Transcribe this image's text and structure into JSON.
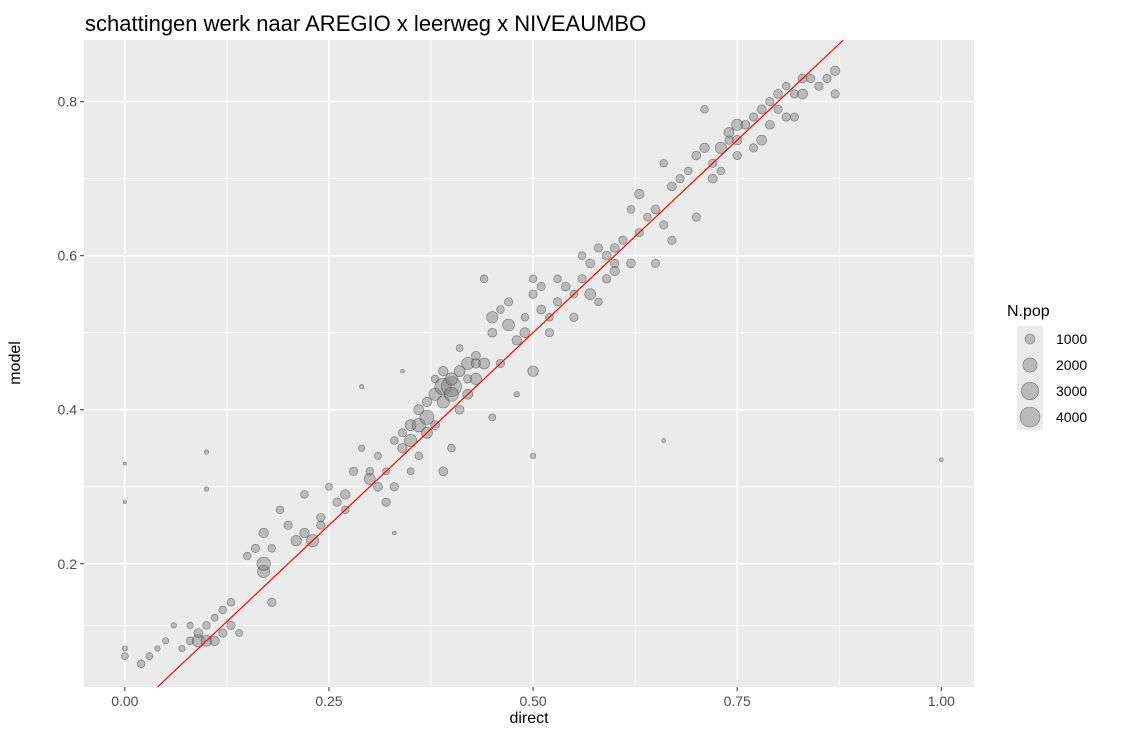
{
  "chart_data": {
    "type": "scatter",
    "title": "schattingen werk naar AREGIO x leerweg x NIVEAUMBO",
    "xlabel": "direct",
    "ylabel": "model",
    "xlim": [
      -0.05,
      1.04
    ],
    "ylim": [
      0.04,
      0.88
    ],
    "x_ticks": [
      0.0,
      0.25,
      0.5,
      0.75,
      1.0
    ],
    "x_tick_labels": [
      "0.00",
      "0.25",
      "0.50",
      "0.75",
      "1.00"
    ],
    "y_ticks": [
      0.2,
      0.4,
      0.6,
      0.8
    ],
    "y_tick_labels": [
      "0.2",
      "0.4",
      "0.6",
      "0.8"
    ],
    "grid": true,
    "reference_line": {
      "intercept": 0,
      "slope": 1,
      "color": "#ff0000"
    },
    "legend": {
      "title": "N.pop",
      "placement": "right",
      "entries": [
        {
          "label": "1000",
          "value": 1000
        },
        {
          "label": "2000",
          "value": 2000
        },
        {
          "label": "3000",
          "value": 3000
        },
        {
          "label": "4000",
          "value": 4000
        }
      ]
    },
    "colors": {
      "panel": "#ebebeb",
      "point_fill": "#7f7f7f",
      "point_stroke": "#333333"
    },
    "points": [
      [
        0.0,
        0.09,
        300
      ],
      [
        0.0,
        0.08,
        500
      ],
      [
        0.0,
        0.33,
        100
      ],
      [
        0.0,
        0.28,
        100
      ],
      [
        0.02,
        0.07,
        600
      ],
      [
        0.03,
        0.08,
        500
      ],
      [
        0.04,
        0.09,
        300
      ],
      [
        0.05,
        0.1,
        400
      ],
      [
        0.06,
        0.12,
        300
      ],
      [
        0.07,
        0.09,
        400
      ],
      [
        0.08,
        0.1,
        600
      ],
      [
        0.08,
        0.12,
        400
      ],
      [
        0.09,
        0.1,
        1500
      ],
      [
        0.09,
        0.11,
        800
      ],
      [
        0.1,
        0.1,
        1200
      ],
      [
        0.1,
        0.12,
        600
      ],
      [
        0.1,
        0.345,
        200
      ],
      [
        0.1,
        0.297,
        200
      ],
      [
        0.11,
        0.1,
        900
      ],
      [
        0.11,
        0.13,
        500
      ],
      [
        0.12,
        0.14,
        600
      ],
      [
        0.12,
        0.11,
        700
      ],
      [
        0.13,
        0.15,
        600
      ],
      [
        0.13,
        0.12,
        700
      ],
      [
        0.14,
        0.11,
        500
      ],
      [
        0.15,
        0.21,
        600
      ],
      [
        0.16,
        0.22,
        700
      ],
      [
        0.17,
        0.24,
        900
      ],
      [
        0.17,
        0.19,
        1500
      ],
      [
        0.17,
        0.2,
        1800
      ],
      [
        0.18,
        0.15,
        700
      ],
      [
        0.18,
        0.22,
        600
      ],
      [
        0.19,
        0.27,
        600
      ],
      [
        0.2,
        0.25,
        700
      ],
      [
        0.21,
        0.23,
        1100
      ],
      [
        0.22,
        0.24,
        900
      ],
      [
        0.22,
        0.29,
        600
      ],
      [
        0.23,
        0.23,
        1500
      ],
      [
        0.24,
        0.26,
        700
      ],
      [
        0.24,
        0.25,
        700
      ],
      [
        0.25,
        0.3,
        500
      ],
      [
        0.26,
        0.28,
        700
      ],
      [
        0.27,
        0.29,
        900
      ],
      [
        0.27,
        0.27,
        600
      ],
      [
        0.28,
        0.32,
        700
      ],
      [
        0.29,
        0.35,
        400
      ],
      [
        0.29,
        0.43,
        200
      ],
      [
        0.3,
        0.31,
        1200
      ],
      [
        0.3,
        0.32,
        600
      ],
      [
        0.31,
        0.3,
        800
      ],
      [
        0.31,
        0.34,
        500
      ],
      [
        0.32,
        0.28,
        700
      ],
      [
        0.32,
        0.32,
        500
      ],
      [
        0.33,
        0.36,
        600
      ],
      [
        0.33,
        0.3,
        700
      ],
      [
        0.33,
        0.24,
        150
      ],
      [
        0.34,
        0.37,
        700
      ],
      [
        0.34,
        0.35,
        900
      ],
      [
        0.34,
        0.45,
        150
      ],
      [
        0.35,
        0.36,
        1500
      ],
      [
        0.35,
        0.38,
        1200
      ],
      [
        0.35,
        0.32,
        500
      ],
      [
        0.36,
        0.38,
        1800
      ],
      [
        0.36,
        0.4,
        1000
      ],
      [
        0.36,
        0.34,
        600
      ],
      [
        0.37,
        0.39,
        2000
      ],
      [
        0.37,
        0.37,
        1200
      ],
      [
        0.37,
        0.41,
        900
      ],
      [
        0.38,
        0.42,
        1500
      ],
      [
        0.38,
        0.38,
        800
      ],
      [
        0.38,
        0.44,
        600
      ],
      [
        0.39,
        0.43,
        2800
      ],
      [
        0.39,
        0.41,
        1500
      ],
      [
        0.39,
        0.45,
        900
      ],
      [
        0.39,
        0.32,
        800
      ],
      [
        0.4,
        0.43,
        4000
      ],
      [
        0.4,
        0.42,
        2000
      ],
      [
        0.4,
        0.44,
        1500
      ],
      [
        0.4,
        0.35,
        600
      ],
      [
        0.41,
        0.45,
        1200
      ],
      [
        0.41,
        0.4,
        800
      ],
      [
        0.41,
        0.48,
        500
      ],
      [
        0.42,
        0.46,
        1500
      ],
      [
        0.42,
        0.42,
        1000
      ],
      [
        0.42,
        0.44,
        700
      ],
      [
        0.43,
        0.44,
        1300
      ],
      [
        0.43,
        0.47,
        800
      ],
      [
        0.43,
        0.46,
        900
      ],
      [
        0.44,
        0.46,
        1200
      ],
      [
        0.44,
        0.57,
        600
      ],
      [
        0.45,
        0.39,
        500
      ],
      [
        0.45,
        0.52,
        1300
      ],
      [
        0.45,
        0.5,
        800
      ],
      [
        0.46,
        0.46,
        700
      ],
      [
        0.46,
        0.53,
        600
      ],
      [
        0.47,
        0.51,
        1400
      ],
      [
        0.47,
        0.54,
        700
      ],
      [
        0.48,
        0.49,
        900
      ],
      [
        0.48,
        0.42,
        300
      ],
      [
        0.49,
        0.5,
        1000
      ],
      [
        0.49,
        0.52,
        600
      ],
      [
        0.5,
        0.45,
        1100
      ],
      [
        0.5,
        0.57,
        600
      ],
      [
        0.5,
        0.55,
        700
      ],
      [
        0.5,
        0.34,
        300
      ],
      [
        0.51,
        0.53,
        800
      ],
      [
        0.51,
        0.56,
        700
      ],
      [
        0.52,
        0.52,
        600
      ],
      [
        0.52,
        0.5,
        700
      ],
      [
        0.53,
        0.54,
        700
      ],
      [
        0.53,
        0.57,
        600
      ],
      [
        0.54,
        0.56,
        800
      ],
      [
        0.55,
        0.52,
        700
      ],
      [
        0.55,
        0.55,
        600
      ],
      [
        0.56,
        0.6,
        600
      ],
      [
        0.56,
        0.57,
        700
      ],
      [
        0.57,
        0.59,
        800
      ],
      [
        0.57,
        0.55,
        1200
      ],
      [
        0.58,
        0.61,
        700
      ],
      [
        0.58,
        0.54,
        600
      ],
      [
        0.59,
        0.6,
        800
      ],
      [
        0.59,
        0.57,
        700
      ],
      [
        0.6,
        0.58,
        900
      ],
      [
        0.6,
        0.61,
        800
      ],
      [
        0.6,
        0.59,
        700
      ],
      [
        0.61,
        0.62,
        700
      ],
      [
        0.62,
        0.66,
        600
      ],
      [
        0.62,
        0.59,
        800
      ],
      [
        0.63,
        0.63,
        700
      ],
      [
        0.63,
        0.68,
        900
      ],
      [
        0.64,
        0.65,
        600
      ],
      [
        0.65,
        0.59,
        700
      ],
      [
        0.65,
        0.66,
        800
      ],
      [
        0.66,
        0.72,
        600
      ],
      [
        0.66,
        0.64,
        700
      ],
      [
        0.66,
        0.36,
        150
      ],
      [
        0.67,
        0.69,
        800
      ],
      [
        0.67,
        0.62,
        700
      ],
      [
        0.68,
        0.7,
        700
      ],
      [
        0.69,
        0.71,
        600
      ],
      [
        0.7,
        0.73,
        800
      ],
      [
        0.7,
        0.65,
        700
      ],
      [
        0.71,
        0.74,
        900
      ],
      [
        0.71,
        0.79,
        600
      ],
      [
        0.72,
        0.72,
        700
      ],
      [
        0.72,
        0.7,
        800
      ],
      [
        0.73,
        0.71,
        600
      ],
      [
        0.73,
        0.74,
        1300
      ],
      [
        0.74,
        0.76,
        1000
      ],
      [
        0.74,
        0.75,
        700
      ],
      [
        0.75,
        0.77,
        1300
      ],
      [
        0.75,
        0.75,
        900
      ],
      [
        0.75,
        0.73,
        700
      ],
      [
        0.76,
        0.77,
        800
      ],
      [
        0.77,
        0.78,
        700
      ],
      [
        0.77,
        0.74,
        700
      ],
      [
        0.78,
        0.79,
        800
      ],
      [
        0.78,
        0.75,
        1000
      ],
      [
        0.79,
        0.8,
        700
      ],
      [
        0.79,
        0.77,
        800
      ],
      [
        0.8,
        0.81,
        800
      ],
      [
        0.8,
        0.79,
        700
      ],
      [
        0.81,
        0.78,
        700
      ],
      [
        0.81,
        0.82,
        600
      ],
      [
        0.82,
        0.81,
        700
      ],
      [
        0.82,
        0.78,
        700
      ],
      [
        0.83,
        0.83,
        800
      ],
      [
        0.83,
        0.81,
        1000
      ],
      [
        0.84,
        0.83,
        700
      ],
      [
        0.85,
        0.82,
        700
      ],
      [
        0.86,
        0.83,
        700
      ],
      [
        0.87,
        0.84,
        900
      ],
      [
        0.87,
        0.81,
        700
      ],
      [
        1.0,
        0.335,
        150
      ]
    ]
  }
}
